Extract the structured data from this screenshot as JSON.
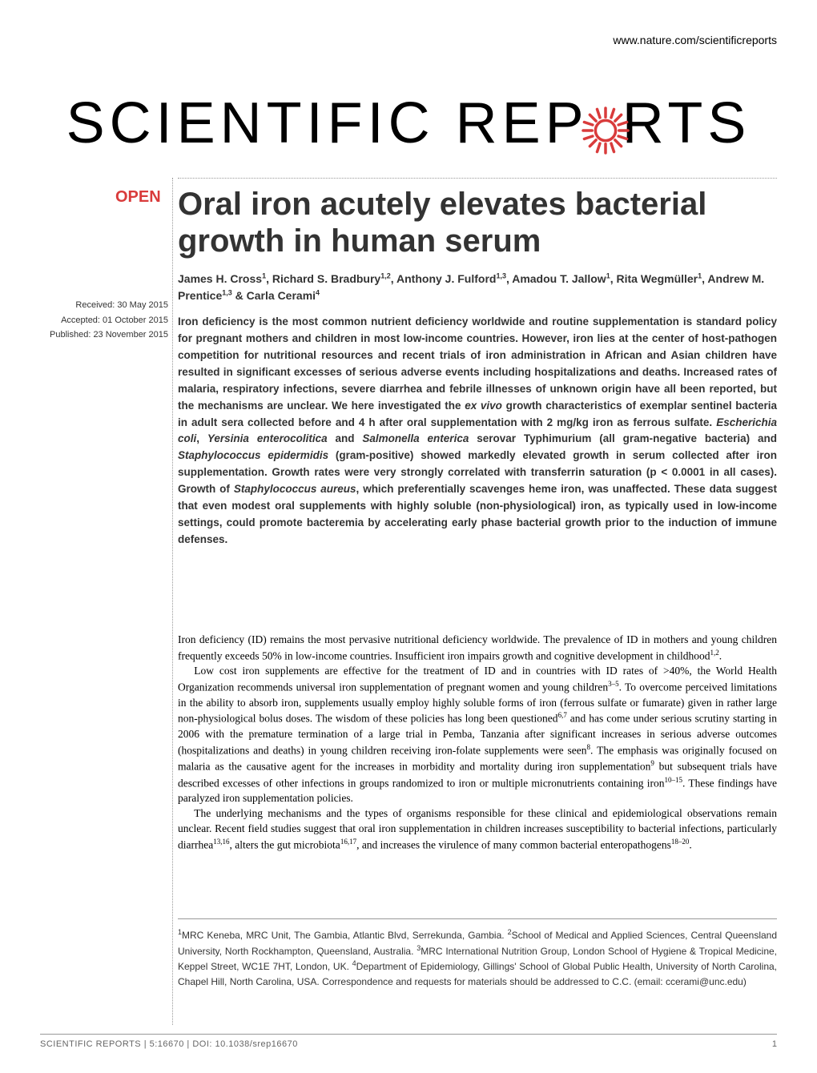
{
  "header": {
    "link": "www.nature.com/scientificreports"
  },
  "logo": {
    "prefix": "SCIENTIFIC",
    "middle": "REP",
    "suffix": "RTS",
    "gear_color": "#d93b3b"
  },
  "open_badge": "OPEN",
  "title": "Oral iron acutely elevates bacterial growth in human serum",
  "authors_html": "James H. Cross<sup>1</sup>, Richard S. Bradbury<sup>1,2</sup>, Anthony J. Fulford<sup>1,3</sup>, Amadou T. Jallow<sup>1</sup>, Rita Wegmüller<sup>1</sup>, Andrew M. Prentice<sup>1,3</sup> & Carla Cerami<sup>4</sup>",
  "dates": {
    "received": "Received: 30 May 2015",
    "accepted": "Accepted: 01 October 2015",
    "published": "Published: 23 November 2015"
  },
  "abstract": "Iron deficiency is the most common nutrient deficiency worldwide and routine supplementation is standard policy for pregnant mothers and children in most low-income countries. However, iron lies at the center of host-pathogen competition for nutritional resources and recent trials of iron administration in African and Asian children have resulted in significant excesses of serious adverse events including hospitalizations and deaths. Increased rates of malaria, respiratory infections, severe diarrhea and febrile illnesses of unknown origin have all been reported, but the mechanisms are unclear. We here investigated the <em>ex vivo</em> growth characteristics of exemplar sentinel bacteria in adult sera collected before and 4 h after oral supplementation with 2 mg/kg iron as ferrous sulfate. <em>Escherichia coli</em>, <em>Yersinia enterocolitica</em> and <em>Salmonella enterica</em> serovar Typhimurium (all gram-negative bacteria) and <em>Staphylococcus epidermidis</em> (gram-positive) showed markedly elevated growth in serum collected after iron supplementation. Growth rates were very strongly correlated with transferrin saturation (p < 0.0001 in all cases). Growth of <em>Staphylococcus aureus</em>, which preferentially scavenges heme iron, was unaffected. These data suggest that even modest oral supplements with highly soluble (non-physiological) iron, as typically used in low-income settings, could promote bacteremia by accelerating early phase bacterial growth prior to the induction of immune defenses.",
  "body": {
    "p1": "Iron deficiency (ID) remains the most pervasive nutritional deficiency worldwide. The prevalence of ID in mothers and young children frequently exceeds 50% in low-income countries. Insufficient iron impairs growth and cognitive development in childhood<sup>1,2</sup>.",
    "p2": "Low cost iron supplements are effective for the treatment of ID and in countries with ID rates of >40%, the World Health Organization recommends universal iron supplementation of pregnant women and young children<sup>3–5</sup>. To overcome perceived limitations in the ability to absorb iron, supplements usually employ highly soluble forms of iron (ferrous sulfate or fumarate) given in rather large non-physiological bolus doses. The wisdom of these policies has long been questioned<sup>6,7</sup> and has come under serious scrutiny starting in 2006 with the premature termination of a large trial in Pemba, Tanzania after significant increases in serious adverse outcomes (hospitalizations and deaths) in young children receiving iron-folate supplements were seen<sup>8</sup>. The emphasis was originally focused on malaria as the causative agent for the increases in morbidity and mortality during iron supplementation<sup>9</sup> but subsequent trials have described excesses of other infections in groups randomized to iron or multiple micronutrients containing iron<sup>10–15</sup>. These findings have paralyzed iron supplementation policies.",
    "p3": "The underlying mechanisms and the types of organisms responsible for these clinical and epidemiological observations remain unclear. Recent field studies suggest that oral iron supplementation in children increases susceptibility to bacterial infections, particularly diarrhea<sup>13,16</sup>, alters the gut microbiota<sup>16,17</sup>, and increases the virulence of many common bacterial enteropathogens<sup>18–20</sup>."
  },
  "affiliations": "<sup>1</sup>MRC Keneba, MRC Unit, The Gambia, Atlantic Blvd, Serrekunda, Gambia. <sup>2</sup>School of Medical and Applied Sciences, Central Queensland University, North Rockhampton, Queensland, Australia. <sup>3</sup>MRC International Nutrition Group, London School of Hygiene & Tropical Medicine, Keppel Street, WC1E 7HT, London, UK. <sup>4</sup>Department of Epidemiology, Gillings' School of Global Public Health, University of North Carolina, Chapel Hill, North Carolina, USA. Correspondence and requests for materials should be addressed to C.C. (email: ccerami@unc.edu)",
  "footer": {
    "citation": "SCIENTIFIC REPORTS | 5:16670 | DOI: 10.1038/srep16670",
    "page": "1"
  },
  "colors": {
    "accent": "#d93b3b",
    "text": "#000000",
    "gray": "#666666",
    "dotted": "#999999"
  }
}
